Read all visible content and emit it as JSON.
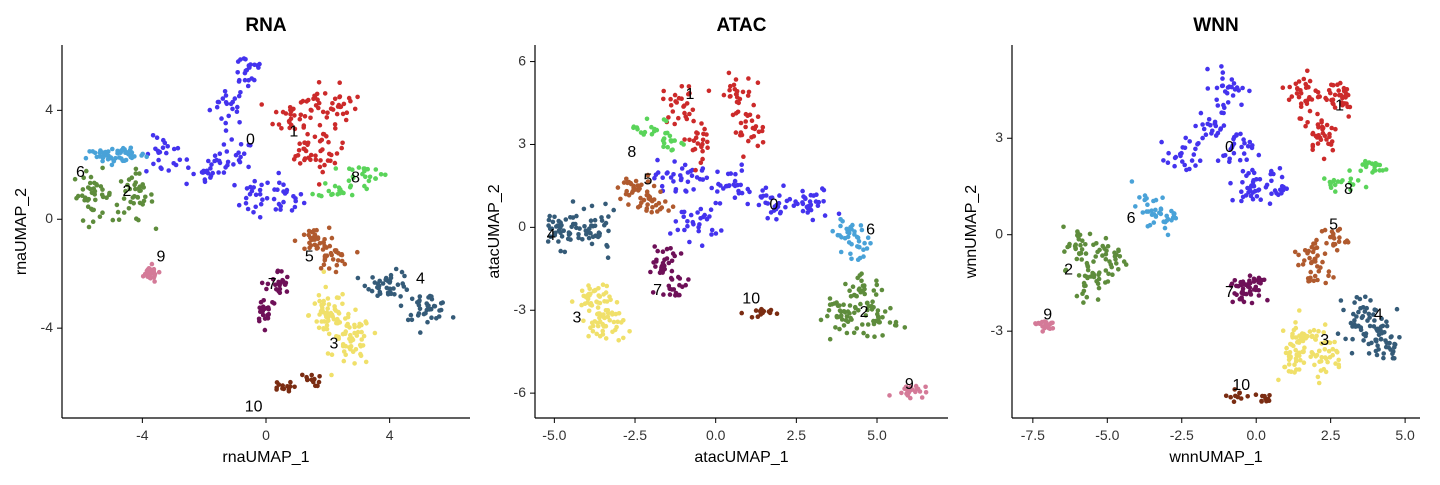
{
  "chart_data": [
    {
      "type": "scatter",
      "title": "RNA",
      "xlabel": "rnaUMAP_1",
      "ylabel": "rnaUMAP_2",
      "xlim": [
        -6.6,
        6.6
      ],
      "ylim": [
        -7.3,
        6.4
      ],
      "xticks": [
        {
          "v": -4,
          "label": "-4"
        },
        {
          "v": 0,
          "label": "0"
        },
        {
          "v": 4,
          "label": "4"
        }
      ],
      "yticks": [
        {
          "v": -4,
          "label": "-4"
        },
        {
          "v": 0,
          "label": "0"
        },
        {
          "v": 4,
          "label": "4"
        }
      ],
      "clusters": [
        {
          "label": "0",
          "color": "#4433ee",
          "n": 150,
          "centers": [
            [
              -1.2,
              4.2
            ],
            [
              -1.0,
              2.2
            ],
            [
              -0.4,
              0.8
            ],
            [
              0.6,
              0.8
            ],
            [
              -3.3,
              2.3
            ],
            [
              -2.1,
              1.8
            ],
            [
              -0.6,
              5.5
            ]
          ],
          "spread": [
            0.5,
            0.6
          ],
          "label_pos": [
            -0.5,
            2.9
          ]
        },
        {
          "label": "1",
          "color": "#cc2a2a",
          "n": 110,
          "centers": [
            [
              0.8,
              3.8
            ],
            [
              1.5,
              4.2
            ],
            [
              2.4,
              4.2
            ],
            [
              1.3,
              2.5
            ],
            [
              2.0,
              2.5
            ]
          ],
          "spread": [
            0.45,
            0.6
          ],
          "label_pos": [
            0.9,
            3.2
          ]
        },
        {
          "label": "2",
          "color": "#5e8c3c",
          "n": 80,
          "centers": [
            [
              -5.6,
              0.9
            ],
            [
              -4.3,
              0.8
            ]
          ],
          "spread": [
            0.55,
            0.75
          ],
          "label_pos": [
            -4.5,
            1.0
          ]
        },
        {
          "label": "3",
          "color": "#f0e06a",
          "n": 110,
          "centers": [
            [
              2.0,
              -3.5
            ],
            [
              2.8,
              -4.5
            ]
          ],
          "spread": [
            0.5,
            0.8
          ],
          "label_pos": [
            2.2,
            -4.6
          ]
        },
        {
          "label": "4",
          "color": "#355b78",
          "n": 80,
          "centers": [
            [
              4.0,
              -2.4
            ],
            [
              5.2,
              -3.2
            ]
          ],
          "spread": [
            0.6,
            0.4
          ],
          "label_pos": [
            5.0,
            -2.2
          ]
        },
        {
          "label": "5",
          "color": "#b05a2e",
          "n": 60,
          "centers": [
            [
              2.1,
              -1.4
            ],
            [
              1.5,
              -0.8
            ]
          ],
          "spread": [
            0.45,
            0.4
          ],
          "label_pos": [
            1.4,
            -1.4
          ]
        },
        {
          "label": "6",
          "color": "#49a2d8",
          "n": 55,
          "centers": [
            [
              -5.2,
              2.3
            ],
            [
              -4.5,
              2.4
            ]
          ],
          "spread": [
            0.5,
            0.28
          ],
          "label_pos": [
            -6.0,
            1.7
          ]
        },
        {
          "label": "7",
          "color": "#6e1058",
          "n": 45,
          "centers": [
            [
              0.0,
              -3.3
            ],
            [
              0.4,
              -2.4
            ]
          ],
          "spread": [
            0.3,
            0.45
          ],
          "label_pos": [
            0.2,
            -2.4
          ]
        },
        {
          "label": "8",
          "color": "#5ad45a",
          "n": 40,
          "centers": [
            [
              2.4,
              1.1
            ],
            [
              3.2,
              1.7
            ]
          ],
          "spread": [
            0.6,
            0.25
          ],
          "label_pos": [
            2.9,
            1.5
          ]
        },
        {
          "label": "9",
          "color": "#d47a98",
          "n": 25,
          "centers": [
            [
              -3.8,
              -2.0
            ]
          ],
          "spread": [
            0.28,
            0.25
          ],
          "label_pos": [
            -3.4,
            -1.4
          ]
        },
        {
          "label": "10",
          "color": "#7a2c12",
          "n": 25,
          "centers": [
            [
              0.5,
              -6.2
            ],
            [
              1.4,
              -5.9
            ]
          ],
          "spread": [
            0.3,
            0.2
          ],
          "label_pos": [
            -0.4,
            -6.9
          ]
        }
      ]
    },
    {
      "type": "scatter",
      "title": "ATAC",
      "xlabel": "atacUMAP_1",
      "ylabel": "atacUMAP_2",
      "xlim": [
        -5.6,
        7.2
      ],
      "ylim": [
        -6.9,
        6.6
      ],
      "xticks": [
        {
          "v": -5,
          "label": "-5.0"
        },
        {
          "v": -2.5,
          "label": "-2.5"
        },
        {
          "v": 0,
          "label": "0.0"
        },
        {
          "v": 2.5,
          "label": "2.5"
        },
        {
          "v": 5,
          "label": "5.0"
        }
      ],
      "yticks": [
        {
          "v": -6,
          "label": "-6"
        },
        {
          "v": -3,
          "label": "-3"
        },
        {
          "v": 0,
          "label": "0"
        },
        {
          "v": 3,
          "label": "3"
        },
        {
          "v": 6,
          "label": "6"
        }
      ],
      "clusters": [
        {
          "label": "0",
          "color": "#4433ee",
          "n": 150,
          "centers": [
            [
              -1.2,
              1.8
            ],
            [
              0.3,
              1.6
            ],
            [
              1.8,
              0.8
            ],
            [
              3.0,
              0.8
            ],
            [
              -0.6,
              0.2
            ]
          ],
          "spread": [
            0.6,
            0.55
          ],
          "label_pos": [
            1.8,
            0.8
          ]
        },
        {
          "label": "1",
          "color": "#cc2a2a",
          "n": 100,
          "centers": [
            [
              -1.1,
              4.5
            ],
            [
              0.6,
              4.8
            ],
            [
              -0.5,
              3.2
            ],
            [
              1.0,
              3.5
            ]
          ],
          "spread": [
            0.45,
            0.6
          ],
          "label_pos": [
            -0.8,
            4.8
          ]
        },
        {
          "label": "2",
          "color": "#5e8c3c",
          "n": 95,
          "centers": [
            [
              4.0,
              -3.2
            ],
            [
              5.0,
              -3.3
            ],
            [
              4.6,
              -2.4
            ]
          ],
          "spread": [
            0.55,
            0.5
          ],
          "label_pos": [
            4.6,
            -3.1
          ]
        },
        {
          "label": "3",
          "color": "#f0e06a",
          "n": 85,
          "centers": [
            [
              -3.8,
              -2.6
            ],
            [
              -3.4,
              -3.5
            ]
          ],
          "spread": [
            0.45,
            0.6
          ],
          "label_pos": [
            -4.3,
            -3.3
          ]
        },
        {
          "label": "4",
          "color": "#355b78",
          "n": 75,
          "centers": [
            [
              -4.8,
              0.0
            ],
            [
              -3.7,
              -0.2
            ]
          ],
          "spread": [
            0.55,
            0.6
          ],
          "label_pos": [
            -5.1,
            -0.3
          ]
        },
        {
          "label": "5",
          "color": "#b05a2e",
          "n": 55,
          "centers": [
            [
              -2.6,
              1.4
            ],
            [
              -2.0,
              0.8
            ]
          ],
          "spread": [
            0.5,
            0.45
          ],
          "label_pos": [
            -2.1,
            1.7
          ]
        },
        {
          "label": "6",
          "color": "#49a2d8",
          "n": 40,
          "centers": [
            [
              4.1,
              -0.1
            ],
            [
              4.4,
              -0.7
            ]
          ],
          "spread": [
            0.35,
            0.35
          ],
          "label_pos": [
            4.8,
            -0.1
          ]
        },
        {
          "label": "7",
          "color": "#6e1058",
          "n": 45,
          "centers": [
            [
              -1.6,
              -1.2
            ],
            [
              -1.3,
              -2.0
            ]
          ],
          "spread": [
            0.4,
            0.5
          ],
          "label_pos": [
            -1.8,
            -2.3
          ]
        },
        {
          "label": "8",
          "color": "#5ad45a",
          "n": 32,
          "centers": [
            [
              -2.1,
              3.6
            ],
            [
              -1.4,
              3.1
            ]
          ],
          "spread": [
            0.45,
            0.35
          ],
          "label_pos": [
            -2.6,
            2.7
          ]
        },
        {
          "label": "9",
          "color": "#d47a98",
          "n": 22,
          "centers": [
            [
              6.0,
              -5.9
            ]
          ],
          "spread": [
            0.4,
            0.2
          ],
          "label_pos": [
            6.0,
            -5.7
          ]
        },
        {
          "label": "10",
          "color": "#7a2c12",
          "n": 15,
          "centers": [
            [
              1.3,
              -3.1
            ]
          ],
          "spread": [
            0.35,
            0.15
          ],
          "label_pos": [
            1.1,
            -2.6
          ]
        }
      ]
    },
    {
      "type": "scatter",
      "title": "WNN",
      "xlabel": "wnnUMAP_1",
      "ylabel": "wnnUMAP_2",
      "xlim": [
        -8.2,
        5.5
      ],
      "ylim": [
        -5.7,
        5.9
      ],
      "xticks": [
        {
          "v": -7.5,
          "label": "-7.5"
        },
        {
          "v": -5,
          "label": "-5.0"
        },
        {
          "v": -2.5,
          "label": "-2.5"
        },
        {
          "v": 0,
          "label": "0.0"
        },
        {
          "v": 2.5,
          "label": "2.5"
        },
        {
          "v": 5,
          "label": "5.0"
        }
      ],
      "yticks": [
        {
          "v": -3,
          "label": "-3"
        },
        {
          "v": 0,
          "label": "0"
        },
        {
          "v": 3,
          "label": "3"
        }
      ],
      "clusters": [
        {
          "label": "0",
          "color": "#4433ee",
          "n": 150,
          "centers": [
            [
              -1.5,
              3.4
            ],
            [
              -0.7,
              2.6
            ],
            [
              -2.4,
              2.4
            ],
            [
              -0.3,
              1.5
            ],
            [
              -0.9,
              4.6
            ],
            [
              0.5,
              1.5
            ]
          ],
          "spread": [
            0.5,
            0.5
          ],
          "label_pos": [
            -0.9,
            2.7
          ]
        },
        {
          "label": "1",
          "color": "#cc2a2a",
          "n": 100,
          "centers": [
            [
              1.6,
              4.4
            ],
            [
              2.8,
              4.3
            ],
            [
              2.2,
              3.2
            ]
          ],
          "spread": [
            0.45,
            0.55
          ],
          "label_pos": [
            2.8,
            4.0
          ]
        },
        {
          "label": "2",
          "color": "#5e8c3c",
          "n": 90,
          "centers": [
            [
              -5.9,
              -0.4
            ],
            [
              -4.9,
              -0.7
            ],
            [
              -5.5,
              -1.4
            ]
          ],
          "spread": [
            0.5,
            0.55
          ],
          "label_pos": [
            -6.3,
            -1.1
          ]
        },
        {
          "label": "3",
          "color": "#f0e06a",
          "n": 100,
          "centers": [
            [
              1.6,
              -3.1
            ],
            [
              2.3,
              -3.8
            ],
            [
              1.2,
              -3.8
            ]
          ],
          "spread": [
            0.5,
            0.5
          ],
          "label_pos": [
            2.3,
            -3.3
          ]
        },
        {
          "label": "4",
          "color": "#355b78",
          "n": 85,
          "centers": [
            [
              3.5,
              -2.6
            ],
            [
              4.3,
              -3.3
            ]
          ],
          "spread": [
            0.45,
            0.6
          ],
          "label_pos": [
            4.1,
            -2.5
          ]
        },
        {
          "label": "5",
          "color": "#b05a2e",
          "n": 60,
          "centers": [
            [
              1.9,
              -0.6
            ],
            [
              2.6,
              -0.1
            ],
            [
              2.0,
              -1.2
            ]
          ],
          "spread": [
            0.4,
            0.35
          ],
          "label_pos": [
            2.6,
            0.3
          ]
        },
        {
          "label": "6",
          "color": "#49a2d8",
          "n": 40,
          "centers": [
            [
              -3.7,
              0.8
            ],
            [
              -3.0,
              0.6
            ]
          ],
          "spread": [
            0.4,
            0.4
          ],
          "label_pos": [
            -4.2,
            0.5
          ]
        },
        {
          "label": "7",
          "color": "#6e1058",
          "n": 50,
          "centers": [
            [
              -0.5,
              -1.8
            ],
            [
              -0.1,
              -1.5
            ]
          ],
          "spread": [
            0.35,
            0.35
          ],
          "label_pos": [
            -0.9,
            -1.8
          ]
        },
        {
          "label": "8",
          "color": "#5ad45a",
          "n": 35,
          "centers": [
            [
              2.6,
              1.6
            ],
            [
              3.8,
              2.1
            ]
          ],
          "spread": [
            0.55,
            0.2
          ],
          "label_pos": [
            3.1,
            1.4
          ]
        },
        {
          "label": "9",
          "color": "#d47a98",
          "n": 22,
          "centers": [
            [
              -7.1,
              -2.8
            ]
          ],
          "spread": [
            0.35,
            0.15
          ],
          "label_pos": [
            -7.0,
            -2.5
          ]
        },
        {
          "label": "10",
          "color": "#7a2c12",
          "n": 20,
          "centers": [
            [
              -0.6,
              -5.0
            ],
            [
              0.3,
              -5.1
            ]
          ],
          "spread": [
            0.3,
            0.15
          ],
          "label_pos": [
            -0.5,
            -4.7
          ]
        }
      ]
    }
  ]
}
